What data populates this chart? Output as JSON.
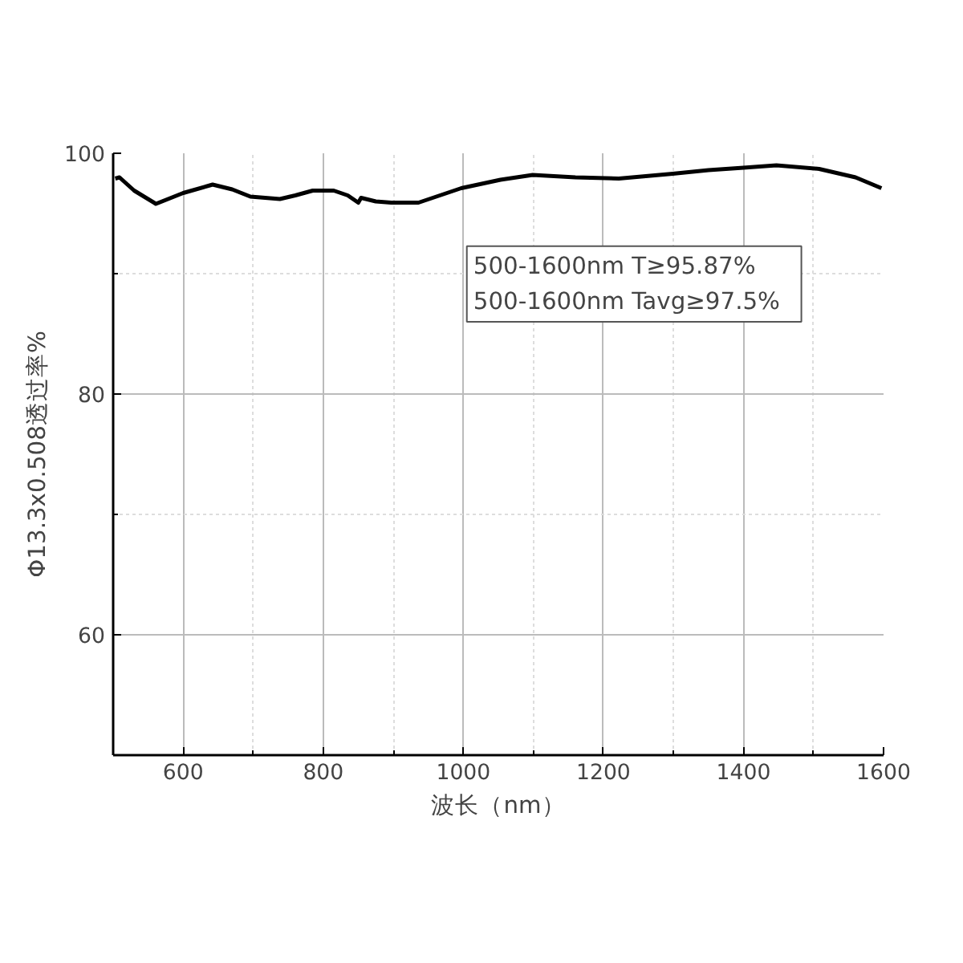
{
  "chart_data": {
    "type": "line",
    "xlabel": "波长（nm）",
    "ylabel": "Φ13.3x0.508透过率%",
    "x": [
      503,
      509,
      530,
      561,
      600,
      642,
      670,
      696,
      738,
      760,
      785,
      815,
      835,
      850,
      854,
      875,
      897,
      936,
      997,
      1053,
      1099,
      1160,
      1222,
      1299,
      1350,
      1400,
      1447,
      1508,
      1560,
      1597
    ],
    "series": [
      {
        "color": "#000000",
        "values": [
          97.9,
          98.0,
          96.9,
          95.8,
          96.7,
          97.4,
          97.0,
          96.4,
          96.2,
          96.5,
          96.9,
          96.9,
          96.5,
          95.9,
          96.3,
          96.0,
          95.9,
          95.9,
          97.1,
          97.8,
          98.2,
          98.0,
          97.9,
          98.3,
          98.6,
          98.8,
          99.0,
          98.7,
          98.0,
          97.1
        ]
      }
    ],
    "xlim": [
      500,
      1600
    ],
    "ylim": [
      50,
      100
    ],
    "xticks": [
      {
        "value": 500,
        "label": null
      },
      600,
      {
        "value": 700,
        "label": null
      },
      800,
      {
        "value": 900,
        "label": null
      },
      1000,
      {
        "value": 1100,
        "label": null
      },
      1200,
      {
        "value": 1300,
        "label": null
      },
      1400,
      {
        "value": 1500,
        "label": null
      },
      1600
    ],
    "yticks": [
      {
        "value": 50,
        "label": null
      },
      60,
      {
        "value": 70,
        "label": null
      },
      80,
      {
        "value": 90,
        "label": null
      },
      100
    ],
    "grid": true,
    "line_style": "solid",
    "marker": "none",
    "annotations": [
      "500-1600nm   T≥95.87%",
      "500-1600nm   Tavg≥97.5%"
    ]
  }
}
